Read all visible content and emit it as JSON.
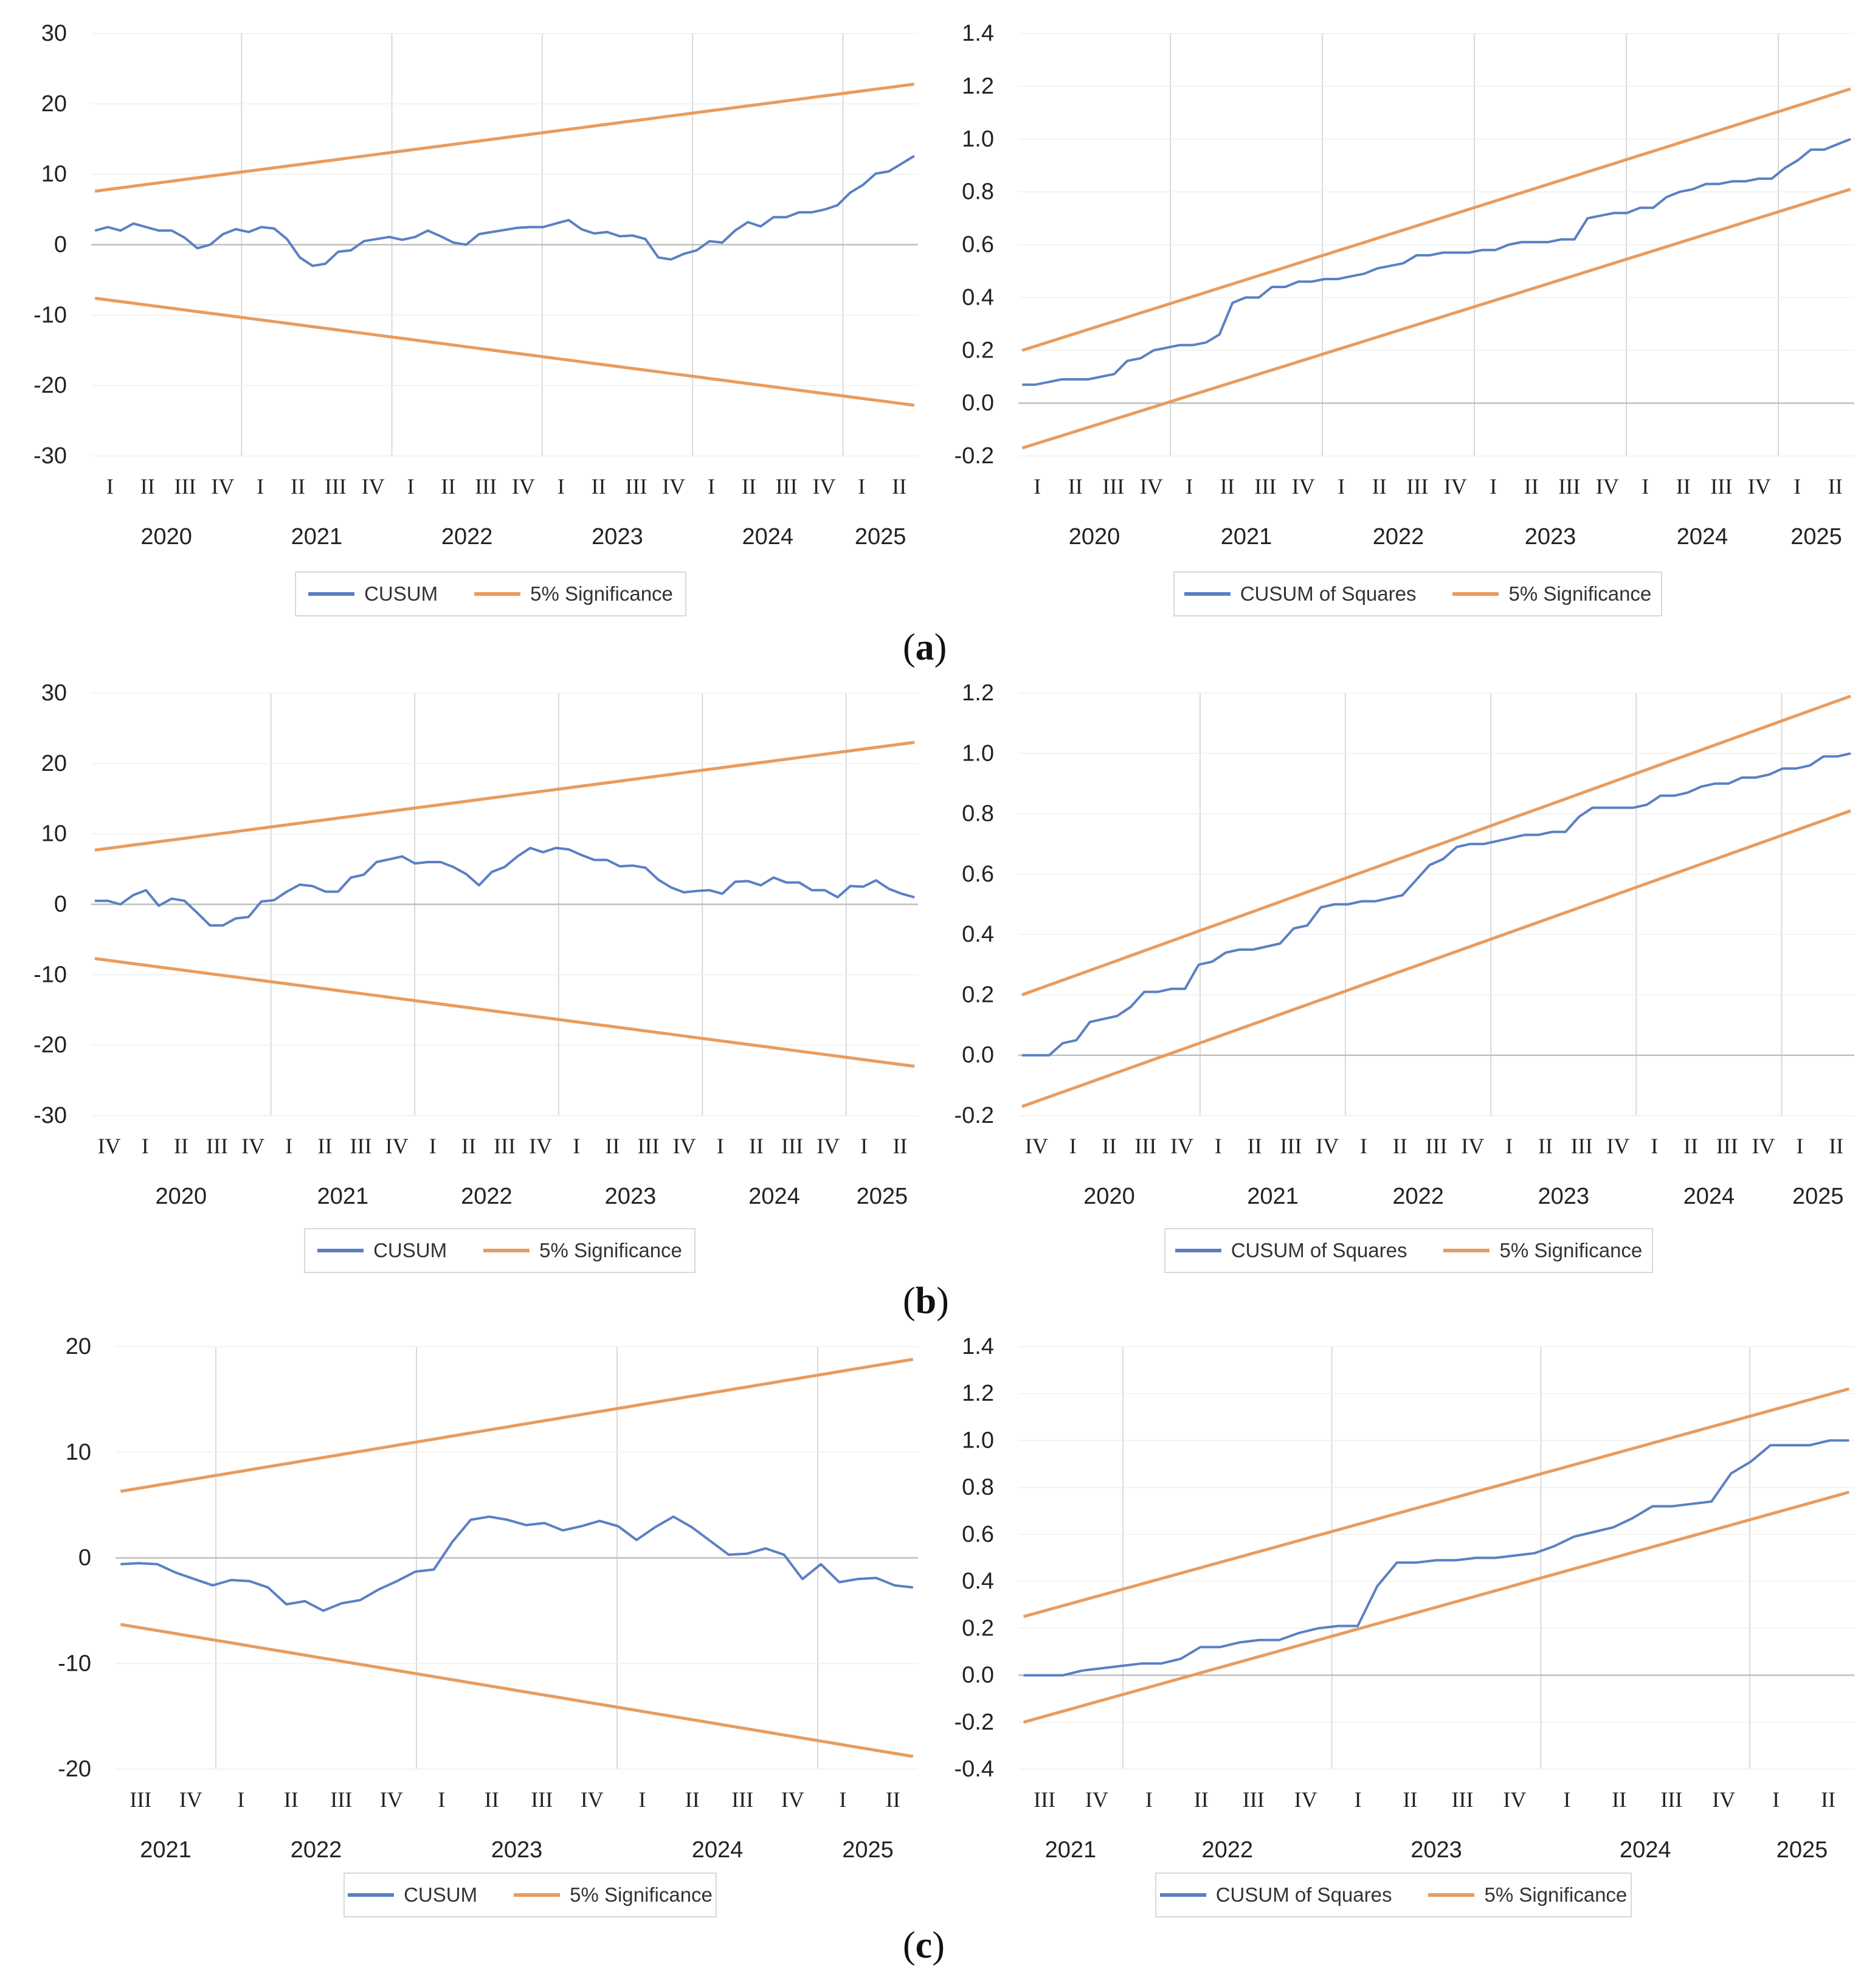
{
  "colors": {
    "cusum": "#5a80c4",
    "significance": "#e89c5f",
    "grid": "#d9d9d9",
    "zero": "#bfbfbf",
    "text": "#222222"
  },
  "panels": [
    {
      "label_open": "(",
      "label_letter": "a",
      "label_close": ")"
    },
    {
      "label_open": "(",
      "label_letter": "b",
      "label_close": ")"
    },
    {
      "label_open": "(",
      "label_letter": "c",
      "label_close": ")"
    }
  ],
  "chart_data": [
    {
      "id": "a-cusum",
      "type": "line",
      "panel": "a",
      "ylim": [
        -30,
        30
      ],
      "yticks": [
        30,
        20,
        10,
        0,
        -10,
        -20,
        -30
      ],
      "ytick_labels": [
        "30",
        "20",
        "10",
        "0",
        "-10",
        "-20",
        "-30"
      ],
      "ydecimals": 0,
      "quarters": [
        "I",
        "II",
        "III",
        "IV",
        "I",
        "II",
        "III",
        "IV",
        "I",
        "II",
        "III",
        "IV",
        "I",
        "II",
        "III",
        "IV",
        "I",
        "II",
        "III",
        "IV",
        "I",
        "II"
      ],
      "years": [
        "2020",
        "2021",
        "2022",
        "2023",
        "2024",
        "2025"
      ],
      "year_quarter_counts": [
        4,
        4,
        4,
        4,
        4,
        2
      ],
      "legend": [
        "CUSUM",
        "5% Significance"
      ],
      "series": [
        {
          "name": "CUSUM",
          "role": "cusum",
          "values": [
            2.0,
            2.5,
            2.0,
            3.0,
            2.5,
            2.0,
            2.0,
            1.0,
            -0.5,
            0.0,
            1.5,
            2.2,
            1.8,
            2.5,
            2.3,
            0.8,
            -1.8,
            -3.0,
            -2.7,
            -1.0,
            -0.8,
            0.5,
            0.8,
            1.1,
            0.7,
            1.1,
            2.0,
            1.2,
            0.3,
            0.0,
            1.5,
            1.8,
            2.1,
            2.4,
            2.5,
            2.5,
            3.0,
            3.5,
            2.2,
            1.6,
            1.8,
            1.2,
            1.3,
            0.8,
            -1.8,
            -2.1,
            -1.3,
            -0.8,
            0.5,
            0.3,
            2.0,
            3.2,
            2.6,
            3.9,
            3.9,
            4.6,
            4.6,
            5.0,
            5.6,
            7.4,
            8.5,
            10.1,
            10.4,
            11.5,
            12.6
          ]
        },
        {
          "name": "5% Significance (upper)",
          "role": "significance",
          "values": [
            7.6,
            22.8
          ]
        },
        {
          "name": "5% Significance (lower)",
          "role": "significance",
          "values": [
            -7.6,
            -22.8
          ]
        }
      ]
    },
    {
      "id": "a-cusumsq",
      "type": "line",
      "panel": "a",
      "ylim": [
        -0.2,
        1.4
      ],
      "yticks": [
        1.4,
        1.2,
        1.0,
        0.8,
        0.6,
        0.4,
        0.2,
        0.0,
        -0.2
      ],
      "ytick_labels": [
        "1.4",
        "1.2",
        "1.0",
        "0.8",
        "0.6",
        "0.4",
        "0.2",
        "0.0",
        "-0.2"
      ],
      "ydecimals": 1,
      "quarters": [
        "I",
        "II",
        "III",
        "IV",
        "I",
        "II",
        "III",
        "IV",
        "I",
        "II",
        "III",
        "IV",
        "I",
        "II",
        "III",
        "IV",
        "I",
        "II",
        "III",
        "IV",
        "I",
        "II"
      ],
      "years": [
        "2020",
        "2021",
        "2022",
        "2023",
        "2024",
        "2025"
      ],
      "year_quarter_counts": [
        4,
        4,
        4,
        4,
        4,
        2
      ],
      "legend": [
        "CUSUM of Squares",
        "5% Significance"
      ],
      "series": [
        {
          "name": "CUSUM of Squares",
          "role": "cusum",
          "values": [
            0.07,
            0.07,
            0.08,
            0.09,
            0.09,
            0.09,
            0.1,
            0.11,
            0.16,
            0.17,
            0.2,
            0.21,
            0.22,
            0.22,
            0.23,
            0.26,
            0.38,
            0.4,
            0.4,
            0.44,
            0.44,
            0.46,
            0.46,
            0.47,
            0.47,
            0.48,
            0.49,
            0.51,
            0.52,
            0.53,
            0.56,
            0.56,
            0.57,
            0.57,
            0.57,
            0.58,
            0.58,
            0.6,
            0.61,
            0.61,
            0.61,
            0.62,
            0.62,
            0.7,
            0.71,
            0.72,
            0.72,
            0.74,
            0.74,
            0.78,
            0.8,
            0.81,
            0.83,
            0.83,
            0.84,
            0.84,
            0.85,
            0.85,
            0.89,
            0.92,
            0.96,
            0.96,
            0.98,
            1.0
          ]
        },
        {
          "name": "5% Significance (upper)",
          "role": "significance",
          "values": [
            0.2,
            1.19
          ]
        },
        {
          "name": "5% Significance (lower)",
          "role": "significance",
          "values": [
            -0.17,
            0.81
          ]
        }
      ]
    },
    {
      "id": "b-cusum",
      "type": "line",
      "panel": "b",
      "ylim": [
        -30,
        30
      ],
      "yticks": [
        30,
        20,
        10,
        0,
        -10,
        -20,
        -30
      ],
      "ytick_labels": [
        "30",
        "20",
        "10",
        "0",
        "-10",
        "-20",
        "-30"
      ],
      "ydecimals": 0,
      "quarters": [
        "IV",
        "I",
        "II",
        "III",
        "IV",
        "I",
        "II",
        "III",
        "IV",
        "I",
        "II",
        "III",
        "IV",
        "I",
        "II",
        "III",
        "IV",
        "I",
        "II",
        "III",
        "IV",
        "I",
        "II"
      ],
      "years": [
        "2020",
        "2021",
        "2022",
        "2023",
        "2024",
        "2025"
      ],
      "year_quarter_counts": [
        5,
        4,
        4,
        4,
        4,
        2
      ],
      "legend": [
        "CUSUM",
        "5% Significance"
      ],
      "series": [
        {
          "name": "CUSUM",
          "role": "cusum",
          "values": [
            0.5,
            0.5,
            0.0,
            1.3,
            2.0,
            -0.2,
            0.8,
            0.5,
            -1.2,
            -3.0,
            -3.0,
            -2.0,
            -1.8,
            0.4,
            0.6,
            1.8,
            2.8,
            2.6,
            1.8,
            1.8,
            3.8,
            4.2,
            6.0,
            6.4,
            6.8,
            5.8,
            6.0,
            6.0,
            5.3,
            4.3,
            2.7,
            4.6,
            5.3,
            6.8,
            8.0,
            7.4,
            8.0,
            7.8,
            7.0,
            6.3,
            6.3,
            5.4,
            5.5,
            5.2,
            3.5,
            2.4,
            1.7,
            1.9,
            2.0,
            1.5,
            3.2,
            3.3,
            2.7,
            3.8,
            3.1,
            3.1,
            2.0,
            2.0,
            1.0,
            2.6,
            2.5,
            3.4,
            2.2,
            1.5,
            1.0
          ]
        },
        {
          "name": "5% Significance (upper)",
          "role": "significance",
          "values": [
            7.7,
            23.0
          ]
        },
        {
          "name": "5% Significance (lower)",
          "role": "significance",
          "values": [
            -7.7,
            -23.0
          ]
        }
      ]
    },
    {
      "id": "b-cusumsq",
      "type": "line",
      "panel": "b",
      "ylim": [
        -0.2,
        1.2
      ],
      "yticks": [
        1.2,
        1.0,
        0.8,
        0.6,
        0.4,
        0.2,
        0.0,
        -0.2
      ],
      "ytick_labels": [
        "1.2",
        "1.0",
        "0.8",
        "0.6",
        "0.4",
        "0.2",
        "0.0",
        "-0.2"
      ],
      "ydecimals": 1,
      "quarters": [
        "IV",
        "I",
        "II",
        "III",
        "IV",
        "I",
        "II",
        "III",
        "IV",
        "I",
        "II",
        "III",
        "IV",
        "I",
        "II",
        "III",
        "IV",
        "I",
        "II",
        "III",
        "IV",
        "I",
        "II"
      ],
      "years": [
        "2020",
        "2021",
        "2022",
        "2023",
        "2024",
        "2025"
      ],
      "year_quarter_counts": [
        5,
        4,
        4,
        4,
        4,
        2
      ],
      "legend": [
        "CUSUM of Squares",
        "5% Significance"
      ],
      "series": [
        {
          "name": "CUSUM of Squares",
          "role": "cusum",
          "values": [
            0.0,
            0.0,
            0.0,
            0.04,
            0.05,
            0.11,
            0.12,
            0.13,
            0.16,
            0.21,
            0.21,
            0.22,
            0.22,
            0.3,
            0.31,
            0.34,
            0.35,
            0.35,
            0.36,
            0.37,
            0.42,
            0.43,
            0.49,
            0.5,
            0.5,
            0.51,
            0.51,
            0.52,
            0.53,
            0.58,
            0.63,
            0.65,
            0.69,
            0.7,
            0.7,
            0.71,
            0.72,
            0.73,
            0.73,
            0.74,
            0.74,
            0.79,
            0.82,
            0.82,
            0.82,
            0.82,
            0.83,
            0.86,
            0.86,
            0.87,
            0.89,
            0.9,
            0.9,
            0.92,
            0.92,
            0.93,
            0.95,
            0.95,
            0.96,
            0.99,
            0.99,
            1.0
          ]
        },
        {
          "name": "5% Significance (upper)",
          "role": "significance",
          "values": [
            0.2,
            1.19
          ]
        },
        {
          "name": "5% Significance (lower)",
          "role": "significance",
          "values": [
            -0.17,
            0.81
          ]
        }
      ]
    },
    {
      "id": "c-cusum",
      "type": "line",
      "panel": "c",
      "ylim": [
        -20,
        20
      ],
      "yticks": [
        20,
        10,
        0,
        -10,
        -20
      ],
      "ytick_labels": [
        "20",
        "10",
        "0",
        "-10",
        "-20"
      ],
      "ydecimals": 0,
      "quarters": [
        "III",
        "IV",
        "I",
        "II",
        "III",
        "IV",
        "I",
        "II",
        "III",
        "IV",
        "I",
        "II",
        "III",
        "IV",
        "I",
        "II"
      ],
      "years": [
        "2021",
        "2022",
        "2023",
        "2024",
        "2025"
      ],
      "year_quarter_counts": [
        2,
        4,
        4,
        4,
        2
      ],
      "legend": [
        "CUSUM",
        "5% Significance"
      ],
      "series": [
        {
          "name": "CUSUM",
          "role": "cusum",
          "values": [
            -0.6,
            -0.5,
            -0.6,
            -1.4,
            -2.0,
            -2.6,
            -2.1,
            -2.2,
            -2.8,
            -4.4,
            -4.1,
            -5.0,
            -4.3,
            -4.0,
            -3.0,
            -2.2,
            -1.3,
            -1.1,
            1.5,
            3.6,
            3.9,
            3.6,
            3.1,
            3.3,
            2.6,
            3.0,
            3.5,
            3.0,
            1.7,
            2.9,
            3.9,
            2.9,
            1.6,
            0.3,
            0.4,
            0.9,
            0.3,
            -2.0,
            -0.6,
            -2.3,
            -2.0,
            -1.9,
            -2.6,
            -2.8
          ]
        },
        {
          "name": "5% Significance (upper)",
          "role": "significance",
          "values": [
            6.3,
            18.8
          ]
        },
        {
          "name": "5% Significance (lower)",
          "role": "significance",
          "values": [
            -6.3,
            -18.8
          ]
        }
      ]
    },
    {
      "id": "c-cusumsq",
      "type": "line",
      "panel": "c",
      "ylim": [
        -0.4,
        1.4
      ],
      "yticks": [
        1.4,
        1.2,
        1.0,
        0.8,
        0.6,
        0.4,
        0.2,
        0.0,
        -0.2,
        -0.4
      ],
      "ytick_labels": [
        "1.4",
        "1.2",
        "1.0",
        "0.8",
        "0.6",
        "0.4",
        "0.2",
        "0.0",
        "-0.2",
        "-0.4"
      ],
      "ydecimals": 1,
      "quarters": [
        "III",
        "IV",
        "I",
        "II",
        "III",
        "IV",
        "I",
        "II",
        "III",
        "IV",
        "I",
        "II",
        "III",
        "IV",
        "I",
        "II"
      ],
      "years": [
        "2021",
        "2022",
        "2023",
        "2024",
        "2025"
      ],
      "year_quarter_counts": [
        2,
        4,
        4,
        4,
        2
      ],
      "legend": [
        "CUSUM of Squares",
        "5% Significance"
      ],
      "series": [
        {
          "name": "CUSUM of Squares",
          "role": "cusum",
          "values": [
            0.0,
            0.0,
            0.0,
            0.02,
            0.03,
            0.04,
            0.05,
            0.05,
            0.07,
            0.12,
            0.12,
            0.14,
            0.15,
            0.15,
            0.18,
            0.2,
            0.21,
            0.21,
            0.38,
            0.48,
            0.48,
            0.49,
            0.49,
            0.5,
            0.5,
            0.51,
            0.52,
            0.55,
            0.59,
            0.61,
            0.63,
            0.67,
            0.72,
            0.72,
            0.73,
            0.74,
            0.86,
            0.91,
            0.98,
            0.98,
            0.98,
            1.0,
            1.0
          ]
        },
        {
          "name": "5% Significance (upper)",
          "role": "significance",
          "values": [
            0.25,
            1.22
          ]
        },
        {
          "name": "5% Significance (lower)",
          "role": "significance",
          "values": [
            -0.2,
            0.78
          ]
        }
      ]
    }
  ]
}
